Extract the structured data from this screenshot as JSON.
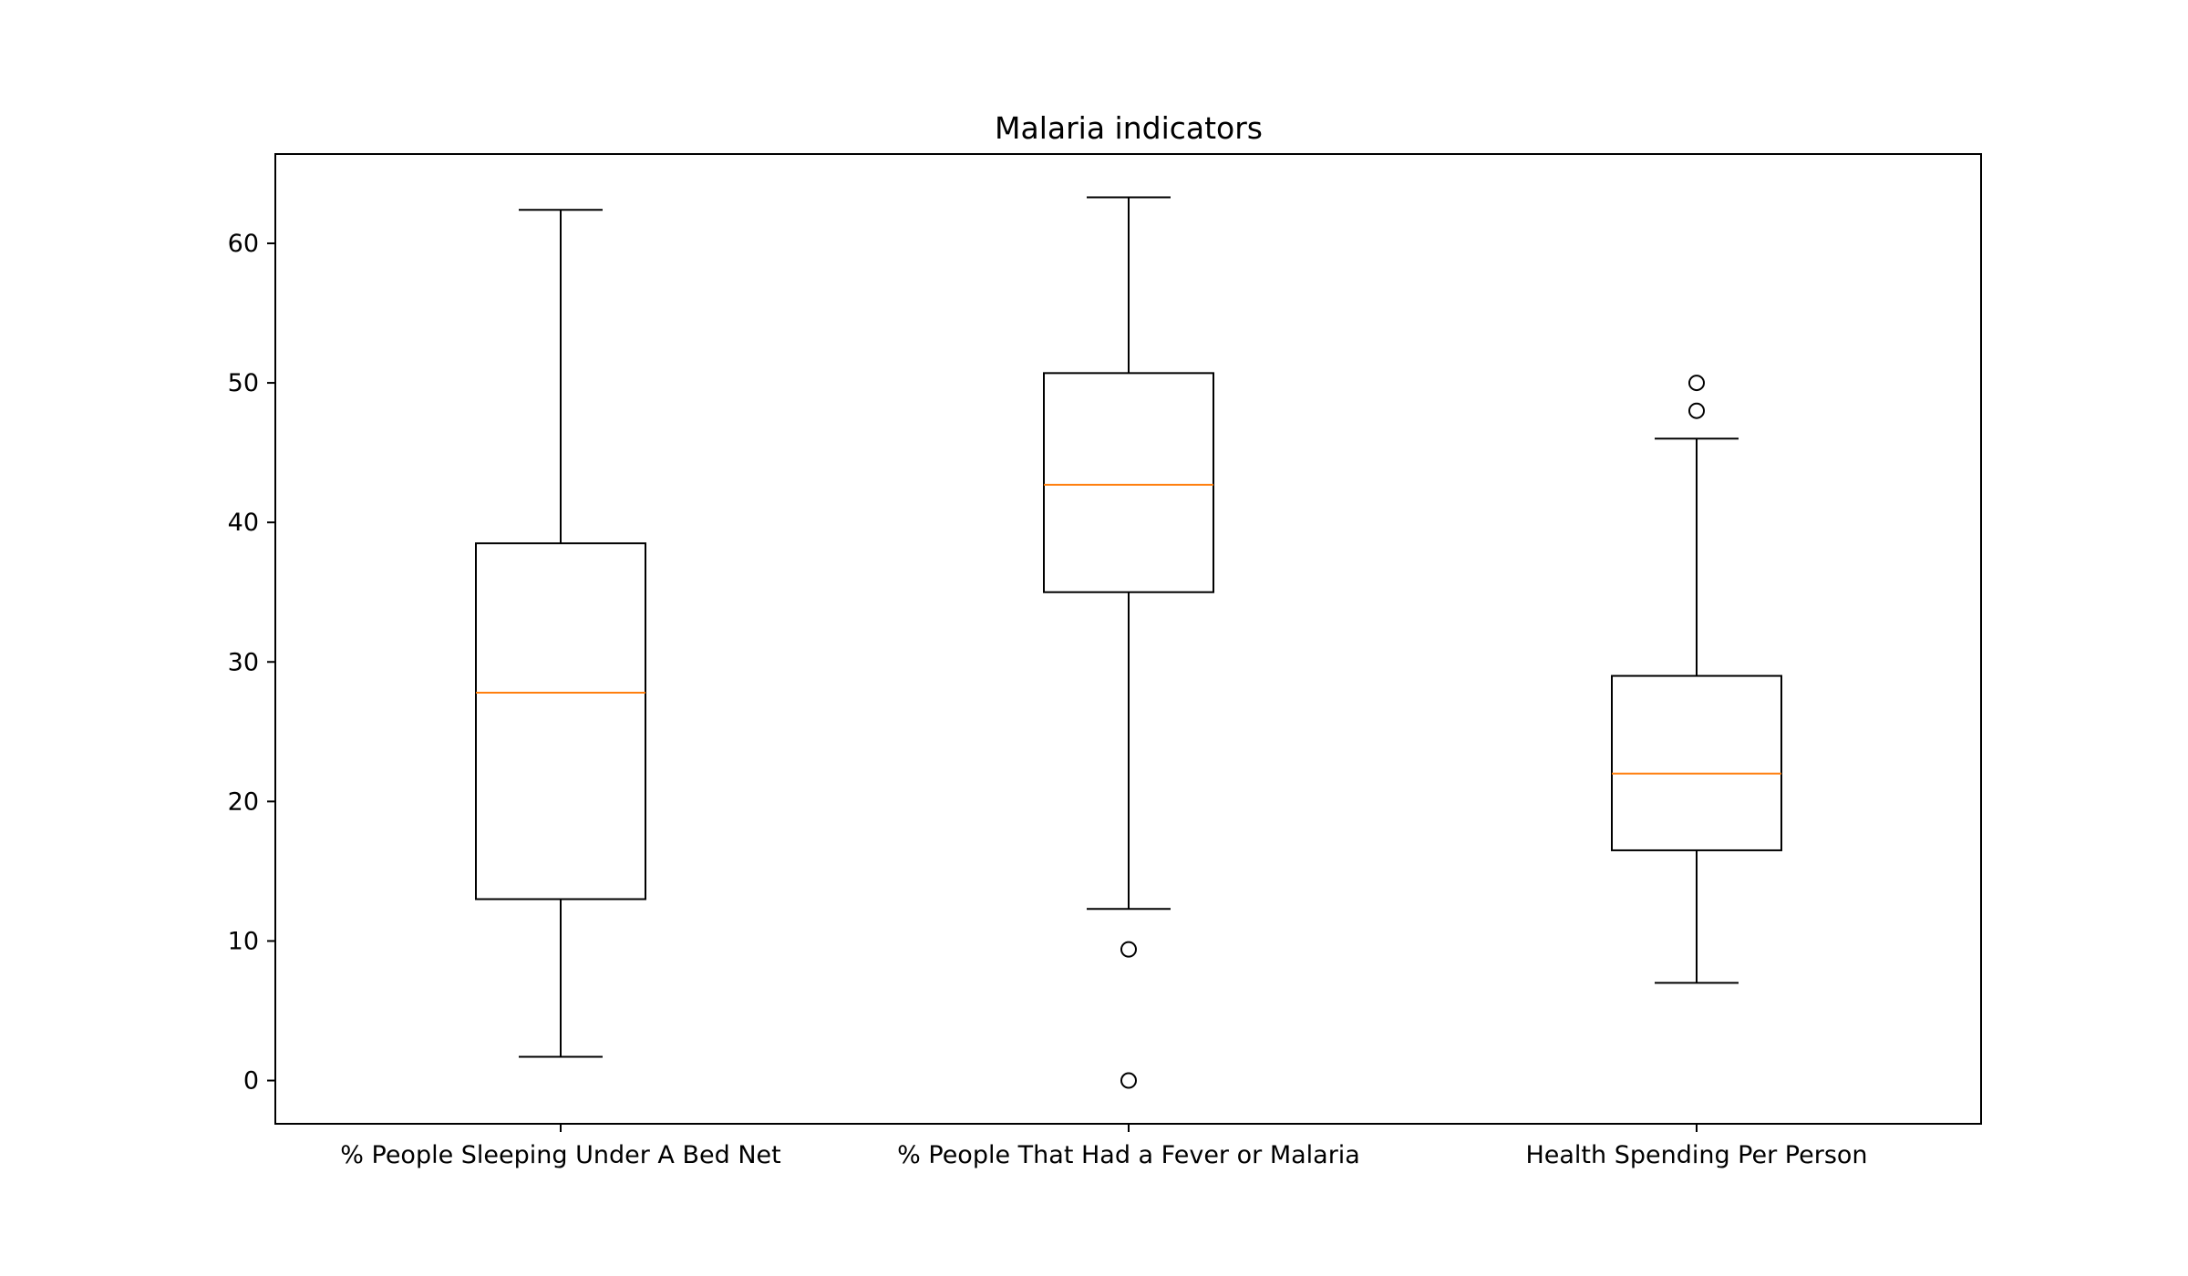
{
  "chart_data": {
    "type": "box",
    "title": "Malaria indicators",
    "xlabel": "",
    "ylabel": "",
    "ylim": [
      -3.1,
      66.4
    ],
    "yticks": [
      0,
      10,
      20,
      30,
      40,
      50,
      60
    ],
    "grid": false,
    "categories": [
      "% People Sleeping Under A Bed Net",
      "% People That Had a Fever or Malaria",
      "Health Spending Per Person"
    ],
    "boxes": [
      {
        "whisker_low": 1.7,
        "q1": 13.0,
        "median": 27.8,
        "q3": 38.5,
        "whisker_high": 62.4,
        "outliers": []
      },
      {
        "whisker_low": 12.3,
        "q1": 35.0,
        "median": 42.7,
        "q3": 50.7,
        "whisker_high": 63.3,
        "outliers": [
          9.4,
          0.0
        ]
      },
      {
        "whisker_low": 7.0,
        "q1": 16.5,
        "median": 22.0,
        "q3": 29.0,
        "whisker_high": 46.0,
        "outliers": [
          48.0,
          50.0
        ]
      }
    ],
    "colors": {
      "box": "#000000",
      "median": "#ff7f0e"
    }
  }
}
